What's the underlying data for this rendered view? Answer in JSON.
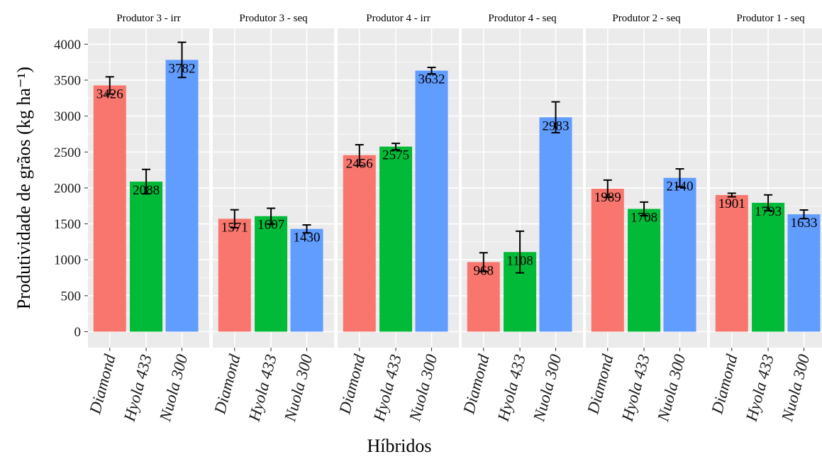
{
  "chart_data": {
    "type": "bar",
    "xlabel": "Híbridos",
    "ylabel": "Produtividade de grãos (kg ha⁻¹)",
    "ylim": [
      0,
      4250
    ],
    "yticks": [
      0,
      500,
      1000,
      1500,
      2000,
      2500,
      3000,
      3500,
      4000
    ],
    "grid": true,
    "legend": "none",
    "categories": [
      "Diamond",
      "Hyola 433",
      "Nuola 300"
    ],
    "colors": {
      "Diamond": "#F8766D",
      "Hyola 433": "#00BA38",
      "Nuola 300": "#619CFF"
    },
    "facets": [
      {
        "label": "Produtor 3 - irr",
        "values": [
          3426,
          2088,
          3782
        ],
        "errors": [
          120,
          170,
          245
        ]
      },
      {
        "label": "Produtor 3 - seq",
        "values": [
          1571,
          1607,
          1430
        ],
        "errors": [
          125,
          110,
          55
        ]
      },
      {
        "label": "Produtor 4 - irr",
        "values": [
          2456,
          2575,
          3632
        ],
        "errors": [
          145,
          45,
          45
        ]
      },
      {
        "label": "Produtor 4 - seq",
        "values": [
          968,
          1108,
          2983
        ],
        "errors": [
          130,
          290,
          215
        ]
      },
      {
        "label": "Produtor 2 - seq",
        "values": [
          1989,
          1708,
          2140
        ],
        "errors": [
          120,
          95,
          125
        ]
      },
      {
        "label": "Produtor 1 - seq",
        "values": [
          1901,
          1793,
          1633
        ],
        "errors": [
          25,
          110,
          60
        ]
      }
    ]
  }
}
